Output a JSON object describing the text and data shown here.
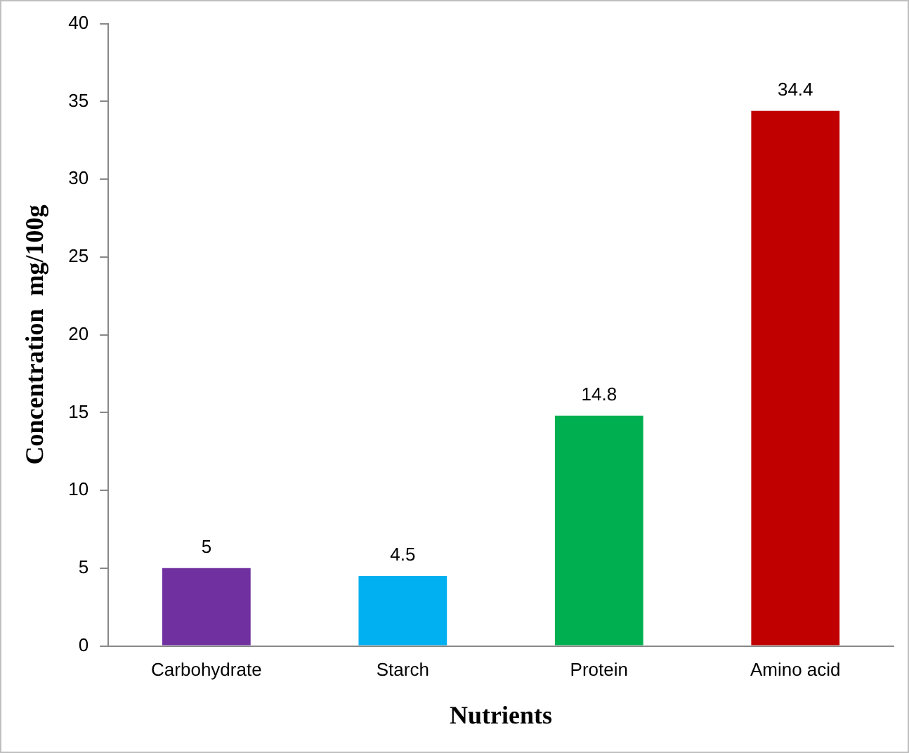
{
  "chart_data": {
    "type": "bar",
    "xlabel": "Nutrients",
    "ylabel": "Concentration  mg/100g",
    "categories": [
      "Carbohydrate",
      "Starch",
      "Protein",
      "Amino acid"
    ],
    "values": [
      5,
      4.5,
      14.8,
      34.4
    ],
    "colors": [
      "#7030a0",
      "#00b0f0",
      "#00b050",
      "#c00000"
    ],
    "ylim": [
      0,
      40
    ],
    "yticks": [
      0,
      5,
      10,
      15,
      20,
      25,
      30,
      35,
      40
    ],
    "grid": false,
    "legend": false,
    "data_labels": true
  }
}
